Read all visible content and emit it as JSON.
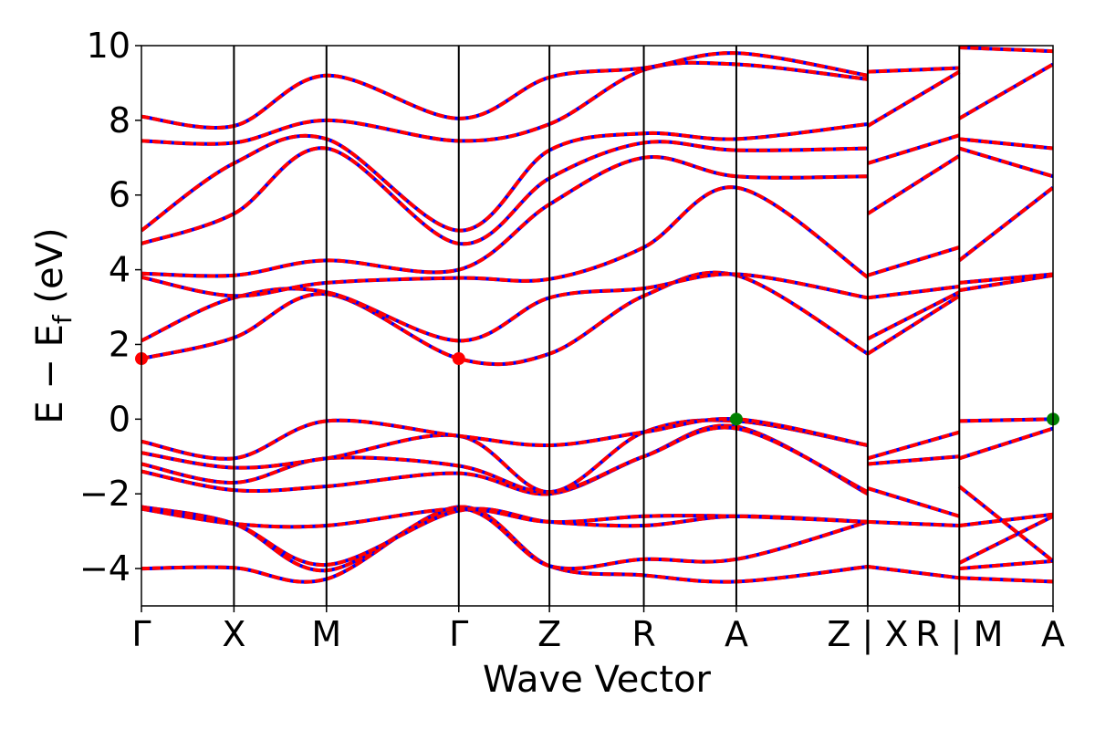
{
  "chart_data": {
    "type": "line",
    "title": "",
    "xlabel": "Wave Vector",
    "ylabel": "E − E",
    "ylabel_sub": "f",
    "ylabel_unit": " (eV)",
    "ylim": [
      -5,
      10
    ],
    "yticks": [
      -4,
      -2,
      0,
      2,
      4,
      6,
      8,
      10
    ],
    "ytick_labels": [
      "−4",
      "−2",
      "0",
      "2",
      "4",
      "6",
      "8",
      "10"
    ],
    "xlim": [
      0,
      9.853
    ],
    "kpoints": [
      {
        "label": "Γ",
        "x": 0.0
      },
      {
        "label": "X",
        "x": 1.0
      },
      {
        "label": "M",
        "x": 2.0
      },
      {
        "label": "Γ",
        "x": 3.43
      },
      {
        "label": "Z",
        "x": 4.41
      },
      {
        "label": "R",
        "x": 5.43
      },
      {
        "label": "A",
        "x": 6.43
      },
      {
        "label": "Z | X",
        "x": 7.85
      },
      {
        "label": "R | M",
        "x": 8.84
      },
      {
        "label": "A",
        "x": 9.853
      }
    ],
    "segment_breaks": [
      7.85,
      8.84
    ],
    "line_colors": {
      "band": "#ff0000",
      "overlay": "#0000ff",
      "vline": "#000000"
    },
    "markers": [
      {
        "x": 0.0,
        "y": 1.62,
        "color": "#ff0000"
      },
      {
        "x": 3.43,
        "y": 1.62,
        "color": "#ff0000"
      },
      {
        "x": 6.43,
        "y": 0.0,
        "color": "#008000"
      },
      {
        "x": 9.853,
        "y": 0.0,
        "color": "#008000"
      }
    ],
    "bands": [
      {
        "x": [
          0,
          1.0,
          2.0,
          3.43,
          4.41,
          5.43,
          6.43,
          7.85
        ],
        "y": [
          -4.0,
          -3.98,
          -4.28,
          -2.35,
          -3.93,
          -4.18,
          -4.35,
          -3.95
        ]
      },
      {
        "x": [
          0,
          1.0,
          2.0,
          3.43,
          4.41,
          5.43,
          6.43,
          7.85
        ],
        "y": [
          -2.35,
          -2.8,
          -4.05,
          -2.4,
          -3.93,
          -3.75,
          -3.75,
          -2.75
        ]
      },
      {
        "x": [
          0,
          1.0,
          2.0,
          3.43,
          4.41,
          5.43,
          6.43,
          7.85
        ],
        "y": [
          -2.38,
          -2.8,
          -3.9,
          -2.45,
          -2.75,
          -2.85,
          -2.6,
          -2.75
        ]
      },
      {
        "x": [
          0,
          1.0,
          2.0,
          3.43,
          4.41,
          5.43,
          6.43,
          7.85
        ],
        "y": [
          -2.4,
          -2.8,
          -2.85,
          -2.4,
          -2.75,
          -2.6,
          -2.6,
          -2.75
        ]
      },
      {
        "x": [
          0,
          1.0,
          2.0,
          3.43,
          4.41,
          5.43,
          6.43,
          7.85
        ],
        "y": [
          -1.4,
          -1.9,
          -1.8,
          -1.45,
          -2.0,
          -1.0,
          -0.2,
          -2.0
        ]
      },
      {
        "x": [
          0,
          1.0,
          2.0,
          3.43,
          4.41,
          5.43,
          6.43,
          7.85
        ],
        "y": [
          -1.2,
          -1.7,
          -1.05,
          -1.25,
          -1.95,
          -1.0,
          -0.25,
          -1.95
        ]
      },
      {
        "x": [
          0,
          1.0,
          2.0,
          3.43,
          4.41,
          5.43,
          6.43,
          7.85
        ],
        "y": [
          -0.9,
          -1.3,
          -1.05,
          -0.45,
          -1.95,
          -0.35,
          -0.05,
          -0.7
        ]
      },
      {
        "x": [
          0,
          1.0,
          2.0,
          3.43,
          4.41,
          5.43,
          6.43,
          7.85
        ],
        "y": [
          -0.6,
          -1.05,
          -0.05,
          -0.45,
          -0.7,
          -0.35,
          0.0,
          -0.7
        ]
      },
      {
        "x": [
          0,
          1.0,
          2.0,
          3.43,
          4.41,
          5.43,
          6.43,
          7.85
        ],
        "y": [
          1.62,
          2.18,
          3.35,
          1.62,
          1.75,
          3.3,
          3.85,
          1.75
        ]
      },
      {
        "x": [
          0,
          1.0,
          2.0,
          3.43,
          4.41,
          5.43,
          6.43,
          7.85
        ],
        "y": [
          2.1,
          3.25,
          3.4,
          2.1,
          3.25,
          3.5,
          3.88,
          3.25
        ]
      },
      {
        "x": [
          0,
          1.0,
          2.0,
          3.43,
          4.41,
          5.43,
          6.43,
          7.85
        ],
        "y": [
          3.8,
          3.3,
          3.65,
          3.78,
          3.75,
          4.6,
          6.2,
          3.8
        ]
      },
      {
        "x": [
          0,
          1.0,
          2.0,
          3.43,
          4.41,
          5.43,
          6.43,
          7.85
        ],
        "y": [
          3.9,
          3.85,
          4.25,
          4.0,
          5.75,
          7.0,
          6.5,
          6.5
        ]
      },
      {
        "x": [
          0,
          1.0,
          2.0,
          3.43,
          4.41,
          5.43,
          6.43,
          7.85
        ],
        "y": [
          4.7,
          5.5,
          7.25,
          4.7,
          6.45,
          7.4,
          7.2,
          7.25
        ]
      },
      {
        "x": [
          0,
          1.0,
          2.0,
          3.43,
          4.41,
          5.43,
          6.43,
          7.85
        ],
        "y": [
          5.05,
          6.85,
          7.5,
          5.05,
          7.2,
          7.65,
          7.5,
          7.9
        ]
      },
      {
        "x": [
          0,
          1.0,
          2.0,
          3.43,
          4.41,
          5.43,
          6.43,
          7.85
        ],
        "y": [
          7.45,
          7.4,
          8.0,
          7.45,
          7.9,
          9.35,
          9.5,
          9.1
        ]
      },
      {
        "x": [
          0,
          1.0,
          2.0,
          3.43,
          4.41,
          5.43,
          6.43,
          7.85
        ],
        "y": [
          8.1,
          7.85,
          9.2,
          8.05,
          9.15,
          9.4,
          9.8,
          9.2
        ]
      },
      {
        "x": [
          7.85,
          8.84
        ],
        "y": [
          -3.95,
          -4.25
        ]
      },
      {
        "x": [
          7.85,
          8.84
        ],
        "y": [
          -2.75,
          -2.85
        ]
      },
      {
        "x": [
          7.85,
          8.84
        ],
        "y": [
          -1.85,
          -2.6
        ]
      },
      {
        "x": [
          7.85,
          8.84
        ],
        "y": [
          -1.2,
          -1.0
        ]
      },
      {
        "x": [
          7.85,
          8.84
        ],
        "y": [
          -1.05,
          -0.35
        ]
      },
      {
        "x": [
          7.85,
          8.84
        ],
        "y": [
          1.75,
          3.3
        ]
      },
      {
        "x": [
          7.85,
          8.84
        ],
        "y": [
          2.15,
          3.4
        ]
      },
      {
        "x": [
          7.85,
          8.84
        ],
        "y": [
          3.25,
          3.55
        ]
      },
      {
        "x": [
          7.85,
          8.84
        ],
        "y": [
          3.85,
          4.6
        ]
      },
      {
        "x": [
          7.85,
          8.84
        ],
        "y": [
          5.5,
          7.05
        ]
      },
      {
        "x": [
          7.85,
          8.84
        ],
        "y": [
          6.85,
          7.6
        ]
      },
      {
        "x": [
          7.85,
          8.84
        ],
        "y": [
          7.85,
          9.3
        ]
      },
      {
        "x": [
          7.85,
          8.84
        ],
        "y": [
          9.3,
          9.4
        ]
      },
      {
        "x": [
          8.84,
          9.853
        ],
        "y": [
          -4.25,
          -4.35
        ]
      },
      {
        "x": [
          8.84,
          9.853
        ],
        "y": [
          -4.0,
          -3.8
        ]
      },
      {
        "x": [
          8.84,
          9.853
        ],
        "y": [
          -3.85,
          -2.6
        ]
      },
      {
        "x": [
          8.84,
          9.853
        ],
        "y": [
          -2.85,
          -2.55
        ]
      },
      {
        "x": [
          8.84,
          9.853
        ],
        "y": [
          -1.8,
          -3.8
        ]
      },
      {
        "x": [
          8.84,
          9.853
        ],
        "y": [
          -1.05,
          -0.25
        ]
      },
      {
        "x": [
          8.84,
          9.853
        ],
        "y": [
          -0.05,
          0.0
        ]
      },
      {
        "x": [
          8.84,
          9.853
        ],
        "y": [
          3.45,
          3.85
        ]
      },
      {
        "x": [
          8.84,
          9.853
        ],
        "y": [
          3.65,
          3.88
        ]
      },
      {
        "x": [
          8.84,
          9.853
        ],
        "y": [
          4.25,
          6.2
        ]
      },
      {
        "x": [
          8.84,
          9.853
        ],
        "y": [
          7.25,
          6.5
        ]
      },
      {
        "x": [
          8.84,
          9.853
        ],
        "y": [
          7.5,
          7.25
        ]
      },
      {
        "x": [
          8.84,
          9.853
        ],
        "y": [
          8.05,
          9.5
        ]
      },
      {
        "x": [
          8.84,
          9.853
        ],
        "y": [
          9.95,
          9.85
        ]
      }
    ]
  }
}
